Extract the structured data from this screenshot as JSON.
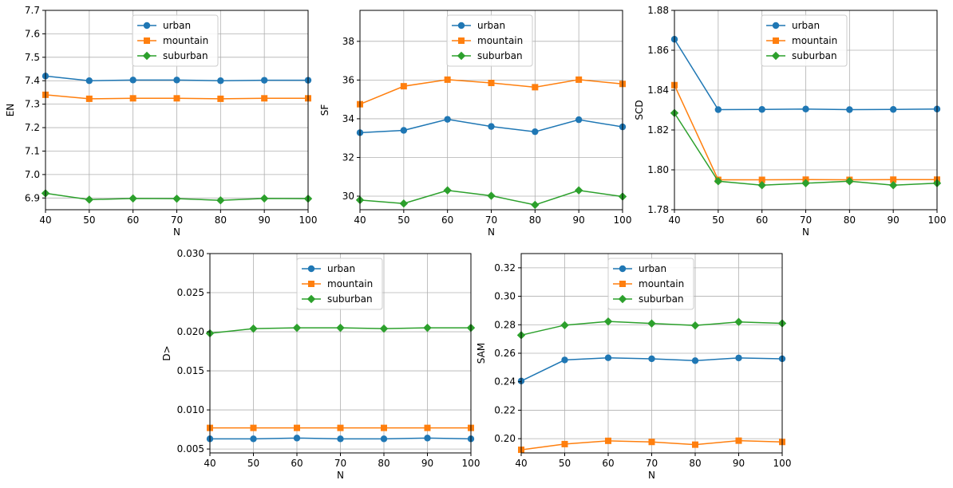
{
  "colors": {
    "urban": "#1f77b4",
    "mountain": "#ff7f0e",
    "suburban": "#2ca02c"
  },
  "chart_data": [
    {
      "type": "line",
      "ylabel": "EN",
      "xlabel": "N",
      "x": [
        40,
        50,
        60,
        70,
        80,
        90,
        100
      ],
      "xticks": [
        "40",
        "50",
        "60",
        "70",
        "80",
        "90",
        "100"
      ],
      "ylim": [
        6.85,
        7.7
      ],
      "yticks": [
        "6.9",
        "7.0",
        "7.1",
        "7.2",
        "7.3",
        "7.4",
        "7.5",
        "7.6",
        "7.7"
      ],
      "ytick_values": [
        6.9,
        7.0,
        7.1,
        7.2,
        7.3,
        7.4,
        7.5,
        7.6,
        7.7
      ],
      "grid": true,
      "legend": "upper center",
      "series": [
        {
          "name": "urban",
          "marker": "circle",
          "values": [
            7.42,
            7.4,
            7.403,
            7.403,
            7.4,
            7.402,
            7.402
          ]
        },
        {
          "name": "mountain",
          "marker": "square",
          "values": [
            7.34,
            7.323,
            7.325,
            7.325,
            7.323,
            7.325,
            7.325
          ]
        },
        {
          "name": "suburban",
          "marker": "diamond",
          "values": [
            6.92,
            6.893,
            6.898,
            6.897,
            6.89,
            6.898,
            6.897
          ]
        }
      ]
    },
    {
      "type": "line",
      "ylabel": "SF",
      "xlabel": "N",
      "x": [
        40,
        50,
        60,
        70,
        80,
        90,
        100
      ],
      "xticks": [
        "40",
        "50",
        "60",
        "70",
        "80",
        "90",
        "100"
      ],
      "ylim": [
        29.3,
        39.6
      ],
      "yticks": [
        "30",
        "32",
        "34",
        "36",
        "38"
      ],
      "ytick_values": [
        30,
        32,
        34,
        36,
        38
      ],
      "grid": true,
      "legend": "upper center",
      "series": [
        {
          "name": "urban",
          "marker": "circle",
          "values": [
            33.28,
            33.4,
            33.97,
            33.6,
            33.33,
            33.95,
            33.58
          ]
        },
        {
          "name": "mountain",
          "marker": "square",
          "values": [
            34.75,
            35.68,
            36.02,
            35.85,
            35.63,
            36.02,
            35.8
          ]
        },
        {
          "name": "suburban",
          "marker": "diamond",
          "values": [
            29.8,
            29.62,
            30.3,
            30.02,
            29.55,
            30.3,
            29.98
          ]
        }
      ]
    },
    {
      "type": "line",
      "ylabel": "SCD",
      "xlabel": "N",
      "x": [
        40,
        50,
        60,
        70,
        80,
        90,
        100
      ],
      "xticks": [
        "40",
        "50",
        "60",
        "70",
        "80",
        "90",
        "100"
      ],
      "ylim": [
        1.78,
        1.88
      ],
      "yticks": [
        "1.78",
        "1.80",
        "1.82",
        "1.84",
        "1.86",
        "1.88"
      ],
      "ytick_values": [
        1.78,
        1.8,
        1.82,
        1.84,
        1.86,
        1.88
      ],
      "grid": true,
      "legend": "upper center",
      "series": [
        {
          "name": "urban",
          "marker": "circle",
          "values": [
            1.8655,
            1.8302,
            1.8303,
            1.8305,
            1.8302,
            1.8303,
            1.8305
          ]
        },
        {
          "name": "mountain",
          "marker": "square",
          "values": [
            1.8425,
            1.795,
            1.795,
            1.7951,
            1.795,
            1.7951,
            1.7951
          ]
        },
        {
          "name": "suburban",
          "marker": "diamond",
          "values": [
            1.8285,
            1.7943,
            1.7923,
            1.7933,
            1.7943,
            1.7923,
            1.7933
          ]
        }
      ]
    },
    {
      "type": "line",
      "ylabel": "D>",
      "xlabel": "N",
      "x": [
        40,
        50,
        60,
        70,
        80,
        90,
        100
      ],
      "xticks": [
        "40",
        "50",
        "60",
        "70",
        "80",
        "90",
        "100"
      ],
      "ylim": [
        0.0045,
        0.03
      ],
      "yticks": [
        "0.005",
        "0.010",
        "0.015",
        "0.020",
        "0.025",
        "0.030"
      ],
      "ytick_values": [
        0.005,
        0.01,
        0.015,
        0.02,
        0.025,
        0.03
      ],
      "grid": true,
      "legend": "upper center",
      "series": [
        {
          "name": "urban",
          "marker": "circle",
          "values": [
            0.0063,
            0.0063,
            0.0064,
            0.0063,
            0.0063,
            0.0064,
            0.0063
          ]
        },
        {
          "name": "mountain",
          "marker": "square",
          "values": [
            0.0077,
            0.0077,
            0.0077,
            0.0077,
            0.0077,
            0.0077,
            0.0077
          ]
        },
        {
          "name": "suburban",
          "marker": "diamond",
          "values": [
            0.0198,
            0.0204,
            0.0205,
            0.0205,
            0.0204,
            0.0205,
            0.0205
          ]
        }
      ]
    },
    {
      "type": "line",
      "ylabel": "SAM",
      "xlabel": "N",
      "x": [
        40,
        50,
        60,
        70,
        80,
        90,
        100
      ],
      "xticks": [
        "40",
        "50",
        "60",
        "70",
        "80",
        "90",
        "100"
      ],
      "ylim": [
        0.19,
        0.33
      ],
      "yticks": [
        "0.20",
        "0.22",
        "0.24",
        "0.26",
        "0.28",
        "0.30",
        "0.32"
      ],
      "ytick_values": [
        0.2,
        0.22,
        0.24,
        0.26,
        0.28,
        0.3,
        0.32
      ],
      "grid": true,
      "legend": "upper center",
      "series": [
        {
          "name": "urban",
          "marker": "circle",
          "values": [
            0.2405,
            0.2553,
            0.2568,
            0.2561,
            0.2548,
            0.2567,
            0.2561
          ]
        },
        {
          "name": "mountain",
          "marker": "square",
          "values": [
            0.1922,
            0.1962,
            0.1985,
            0.1977,
            0.1958,
            0.1986,
            0.1977
          ]
        },
        {
          "name": "suburban",
          "marker": "diamond",
          "values": [
            0.2727,
            0.2797,
            0.2823,
            0.2809,
            0.2795,
            0.282,
            0.281
          ]
        }
      ]
    }
  ]
}
